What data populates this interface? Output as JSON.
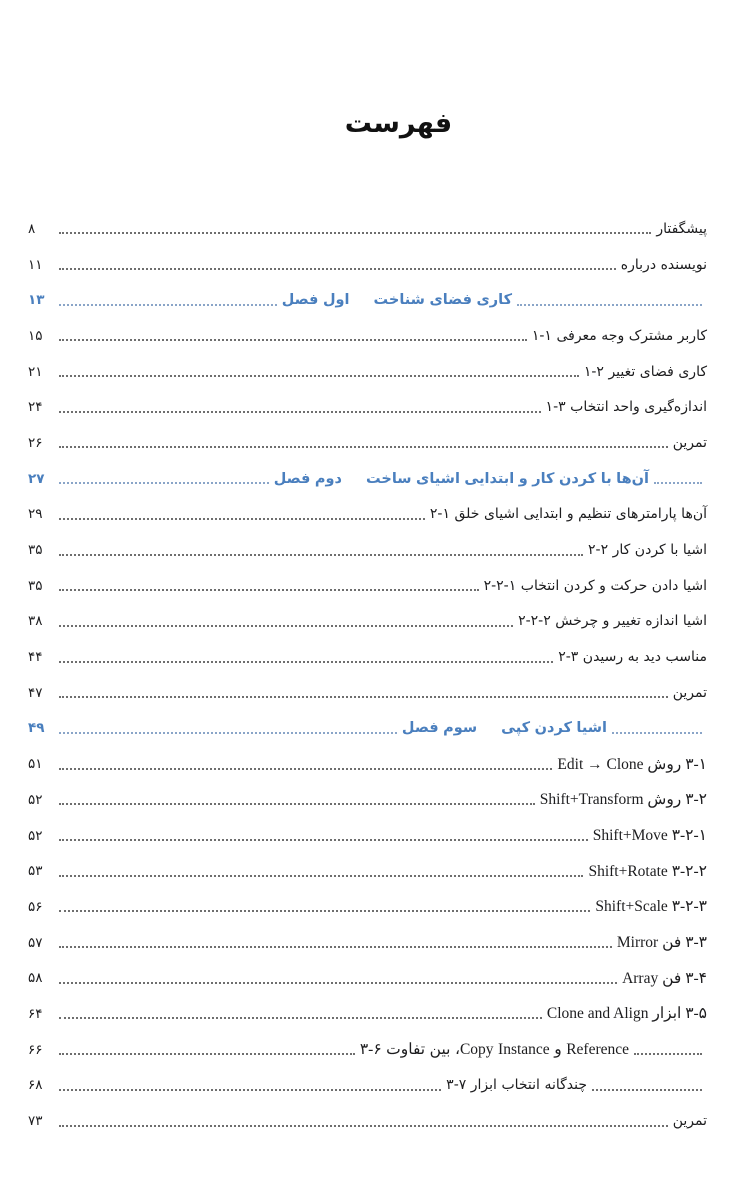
{
  "page_title": "فهرست",
  "colors": {
    "accent": "#4a7fbe",
    "text": "#1d1d1f",
    "item_dots": "#6e6e6e",
    "chapter_dots": "#8aa5c8"
  },
  "toc": {
    "entries": [
      {
        "page": "۸",
        "title": "پیشگفتار",
        "kind": "item",
        "layout": "mirror",
        "trail": 0,
        "serif": false
      },
      {
        "page": "۱۱",
        "title": "درباره نویسنده",
        "kind": "item",
        "layout": "mirror",
        "trail": 0,
        "serif": false
      },
      {
        "page": "۱۳",
        "label": "فصل اول",
        "title": "شناخت فضای کاری",
        "kind": "chapter",
        "layout": "mirror",
        "trail": 185,
        "serif": false
      },
      {
        "page": "۱۵",
        "title": "۱-۱ معرفی وجه مشترک کاربر",
        "kind": "item",
        "layout": "mirror",
        "trail": 0,
        "serif": false
      },
      {
        "page": "۲۱",
        "title": "۱-۲ تغییر فضای کاری",
        "kind": "item",
        "layout": "mirror",
        "trail": 0,
        "serif": false
      },
      {
        "page": "۲۴",
        "title": "۱-۳ انتخاب واحد اندازه‌گیری",
        "kind": "item",
        "layout": "mirror",
        "trail": 0,
        "serif": false
      },
      {
        "page": "۲۶",
        "title": "تمرین",
        "kind": "item",
        "layout": "mirror",
        "trail": 0,
        "serif": false
      },
      {
        "page": "۲۷",
        "label": "فصل دوم",
        "title": "ساخت اشیای ابتدایی و کار کردن با آن‌ها",
        "kind": "chapter",
        "layout": "mirror",
        "trail": 48,
        "serif": false
      },
      {
        "page": "۲۹",
        "title": "۲-۱ خلق اشیای ابتدایی و تنظیم پارامترهای آن‌ها",
        "kind": "item",
        "layout": "mirror",
        "trail": 0,
        "serif": false
      },
      {
        "page": "۳۵",
        "title": "۲-۲ کار کردن با اشیا",
        "kind": "item",
        "layout": "mirror",
        "trail": 0,
        "serif": false
      },
      {
        "page": "۳۵",
        "title": "۲-۲-۱ انتخاب کردن و حرکت دادن اشیا",
        "kind": "item",
        "layout": "mirror",
        "trail": 0,
        "serif": false
      },
      {
        "page": "۳۸",
        "title": "۲-۲-۲ چرخش و تغییر اندازه اشیا",
        "kind": "item",
        "layout": "mirror",
        "trail": 0,
        "serif": false
      },
      {
        "page": "۴۴",
        "title": "۲-۳ رسیدن به دید مناسب",
        "kind": "item",
        "layout": "mirror",
        "trail": 0,
        "serif": false
      },
      {
        "page": "۴۷",
        "title": "تمرین",
        "kind": "item",
        "layout": "mirror",
        "trail": 0,
        "serif": false
      },
      {
        "page": "۴۹",
        "label": "فصل سوم",
        "title": "کپی کردن اشیا",
        "kind": "chapter",
        "layout": "mirror",
        "trail": 90,
        "serif": false
      },
      {
        "page": "۵۱",
        "title": "۳-۱ روش Edit → Clone",
        "kind": "item",
        "layout": "rtl",
        "trail": 0,
        "serif": true
      },
      {
        "page": "۵۲",
        "title": "۳-۲ روش Shift+Transform",
        "kind": "item",
        "layout": "rtl",
        "trail": 0,
        "serif": true
      },
      {
        "page": "۵۲",
        "title": "۳-۲-۱ Shift+Move",
        "kind": "item",
        "layout": "rtl",
        "trail": 0,
        "serif": true
      },
      {
        "page": "۵۳",
        "title": "۳-۲-۲ Shift+Rotate",
        "kind": "item",
        "layout": "rtl",
        "trail": 0,
        "serif": true
      },
      {
        "page": "۵۶",
        "title": "۳-۲-۳ Shift+Scale",
        "kind": "item",
        "layout": "rtl",
        "trail": 0,
        "serif": true
      },
      {
        "page": "۵۷",
        "title": "۳-۳ فن Mirror",
        "kind": "item",
        "layout": "rtl",
        "trail": 0,
        "serif": true
      },
      {
        "page": "۵۸",
        "title": "۳-۴ فن Array",
        "kind": "item",
        "layout": "rtl",
        "trail": 0,
        "serif": true
      },
      {
        "page": "۶۴",
        "title": "۳-۵ ابزار Clone and Align",
        "kind": "item",
        "layout": "rtl",
        "trail": 0,
        "serif": true
      },
      {
        "page": "۶۶",
        "title": "۳-۶ تفاوت بین Copy، Instance و Reference",
        "kind": "item",
        "layout": "mirror",
        "trail": 68,
        "serif": true
      },
      {
        "page": "۶۸",
        "title": "۳-۷ ابزار انتخاب  چندگانه",
        "kind": "item",
        "layout": "mirror",
        "trail": 110,
        "serif": false
      },
      {
        "page": "۷۳",
        "title": "تمرین",
        "kind": "item",
        "layout": "mirror",
        "trail": 0,
        "serif": false
      }
    ]
  }
}
